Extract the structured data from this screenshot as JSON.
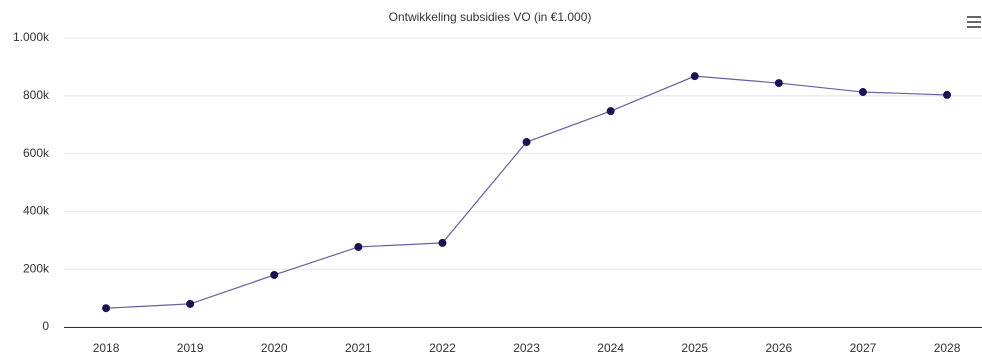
{
  "chart_data": {
    "type": "line",
    "title": "Ontwikkeling subsidies VO (in €1.000)",
    "categories": [
      "2018",
      "2019",
      "2020",
      "2021",
      "2022",
      "2023",
      "2024",
      "2025",
      "2026",
      "2027",
      "2028"
    ],
    "series": [
      {
        "name": "Subsidies VO",
        "color": "#1c1452",
        "line_color": "#6a5ea0",
        "values": [
          65000,
          80000,
          180000,
          277000,
          291000,
          640000,
          747000,
          868000,
          844000,
          813000,
          803000
        ]
      }
    ],
    "ylim": [
      0,
      1000000
    ],
    "yticks": [
      0,
      {
        "value": 200000,
        "label": "200k"
      },
      {
        "value": 400000,
        "label": "400k"
      },
      {
        "value": 600000,
        "label": "600k"
      },
      {
        "value": 800000,
        "label": "800k"
      },
      {
        "value": 1000000,
        "label": "1.000k"
      }
    ],
    "grid": true
  }
}
